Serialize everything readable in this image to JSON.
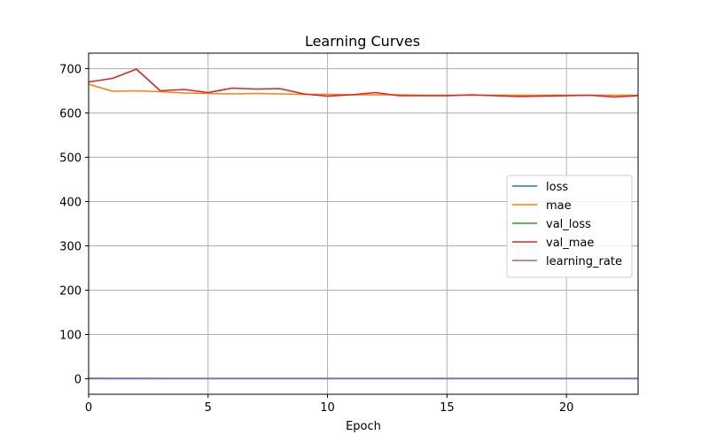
{
  "chart_data": {
    "type": "line",
    "title": "Learning Curves",
    "xlabel": "Epoch",
    "ylabel": "",
    "xlim": [
      0,
      23
    ],
    "ylim": [
      -35,
      735
    ],
    "x_ticks": [
      0,
      5,
      10,
      15,
      20
    ],
    "y_ticks": [
      0,
      100,
      200,
      300,
      400,
      500,
      600,
      700
    ],
    "grid": true,
    "legend_position": "center-right",
    "x": [
      0,
      1,
      2,
      3,
      4,
      5,
      6,
      7,
      8,
      9,
      10,
      11,
      12,
      13,
      14,
      15,
      16,
      17,
      18,
      19,
      20,
      21,
      22,
      23
    ],
    "series": [
      {
        "name": "loss",
        "color": "#1f77b4",
        "values": [
          0.8,
          0.7,
          0.7,
          0.6,
          0.6,
          0.6,
          0.6,
          0.6,
          0.6,
          0.6,
          0.6,
          0.6,
          0.6,
          0.6,
          0.6,
          0.6,
          0.6,
          0.6,
          0.6,
          0.6,
          0.6,
          0.6,
          0.6,
          0.6
        ]
      },
      {
        "name": "mae",
        "color": "#ff7f0e",
        "values": [
          665,
          649,
          650,
          648,
          645,
          644,
          643,
          644,
          643,
          642,
          642,
          641,
          641,
          641,
          640,
          640,
          640,
          640,
          640,
          640,
          640,
          640,
          640,
          640
        ]
      },
      {
        "name": "val_loss",
        "color": "#2ca02c",
        "values": [
          0.8,
          0.8,
          0.9,
          0.7,
          0.7,
          0.7,
          0.7,
          0.7,
          0.7,
          0.6,
          0.6,
          0.6,
          0.6,
          0.6,
          0.6,
          0.6,
          0.6,
          0.6,
          0.6,
          0.6,
          0.6,
          0.6,
          0.6,
          0.6
        ]
      },
      {
        "name": "val_mae",
        "color": "#d62728",
        "values": [
          670,
          678,
          699,
          650,
          653,
          646,
          656,
          654,
          655,
          643,
          638,
          641,
          646,
          639,
          639,
          639,
          641,
          639,
          637,
          638,
          639,
          640,
          636,
          639
        ]
      },
      {
        "name": "learning_rate",
        "color": "#9467bd",
        "values": [
          0.001,
          0.001,
          0.001,
          0.001,
          0.001,
          0.001,
          0.001,
          0.001,
          0.001,
          0.001,
          0.001,
          0.001,
          0.001,
          0.001,
          0.001,
          0.001,
          0.001,
          0.001,
          0.001,
          0.001,
          0.001,
          0.001,
          0.001,
          0.001
        ]
      }
    ]
  }
}
